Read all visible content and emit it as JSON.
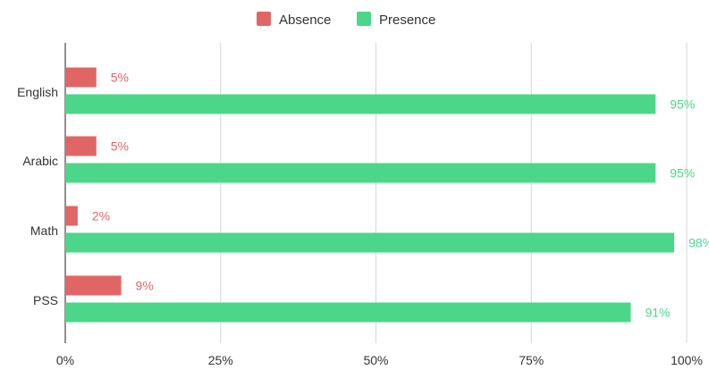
{
  "chart_data": {
    "type": "bar",
    "orientation": "horizontal",
    "categories": [
      "English",
      "Arabic",
      "Math",
      "PSS"
    ],
    "series": [
      {
        "name": "Absence",
        "values": [
          5,
          5,
          2,
          9
        ],
        "labels": [
          "5%",
          "5%",
          "2%",
          "9%"
        ],
        "color": "#e06666"
      },
      {
        "name": "Presence",
        "values": [
          95,
          95,
          98,
          91
        ],
        "labels": [
          "95%",
          "95%",
          "98%",
          "91%"
        ],
        "color": "#4cd68a"
      }
    ],
    "xlim": [
      0,
      100
    ],
    "x_ticks": [
      0,
      25,
      50,
      75,
      100
    ],
    "x_tick_labels": [
      "0%",
      "25%",
      "50%",
      "75%",
      "100%"
    ],
    "grid": true,
    "legend_position": "top-center",
    "title": "",
    "xlabel": "",
    "ylabel": ""
  }
}
